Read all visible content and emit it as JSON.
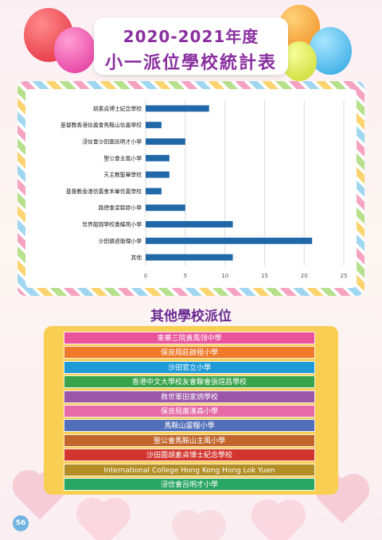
{
  "header": {
    "title_line1": "2020-2021年度",
    "title_line2": "小一派位學校統計表"
  },
  "chart_data": {
    "type": "bar",
    "orientation": "horizontal",
    "categories": [
      "胡素貞博士紀念學校",
      "基督教香港信義會馬鞍山信義學校",
      "浸信會沙田圍呂明才小學",
      "聖公會主風小學",
      "天主教聖華學校",
      "基督教香港信義會禾輋信義學校",
      "路德會梁鉅鏐小學",
      "世界龍岡學校黃耀南小學",
      "沙田循道衛理小學",
      "其他"
    ],
    "values": [
      8,
      2,
      5,
      3,
      3,
      2,
      5,
      11,
      21,
      11
    ],
    "xlim": [
      0,
      25
    ],
    "x_ticks": [
      0,
      5,
      10,
      15,
      20,
      25
    ],
    "grid": "vertical",
    "bar_color": "#2068a8",
    "title": "",
    "xlabel": "",
    "ylabel": ""
  },
  "other_schools": {
    "title": "其他學校派位",
    "items": [
      {
        "label": "東華三院黃鳳翎中學",
        "color": "#e9539b"
      },
      {
        "label": "保良局莊啟程小學",
        "color": "#ef7a2c"
      },
      {
        "label": "沙田官立小學",
        "color": "#1f9ad6"
      },
      {
        "label": "香港中文大學校友會聯會張煊昌學校",
        "color": "#3aa44d"
      },
      {
        "label": "救世軍田家炳學校",
        "color": "#9b56a8"
      },
      {
        "label": "保良局蕭漢森小學",
        "color": "#e56aa6"
      },
      {
        "label": "馬鞍山靈糧小學",
        "color": "#5270b9"
      },
      {
        "label": "聖公會馬鞍山主風小學",
        "color": "#c2662d"
      },
      {
        "label": "沙田圍胡素貞博士紀念學校",
        "color": "#d2352e"
      },
      {
        "label": "International College Hong Kong Hong Lok Yuen",
        "color": "#b38e26"
      },
      {
        "label": "浸信會呂明才小學",
        "color": "#2aa664"
      }
    ]
  },
  "page_number": "56"
}
